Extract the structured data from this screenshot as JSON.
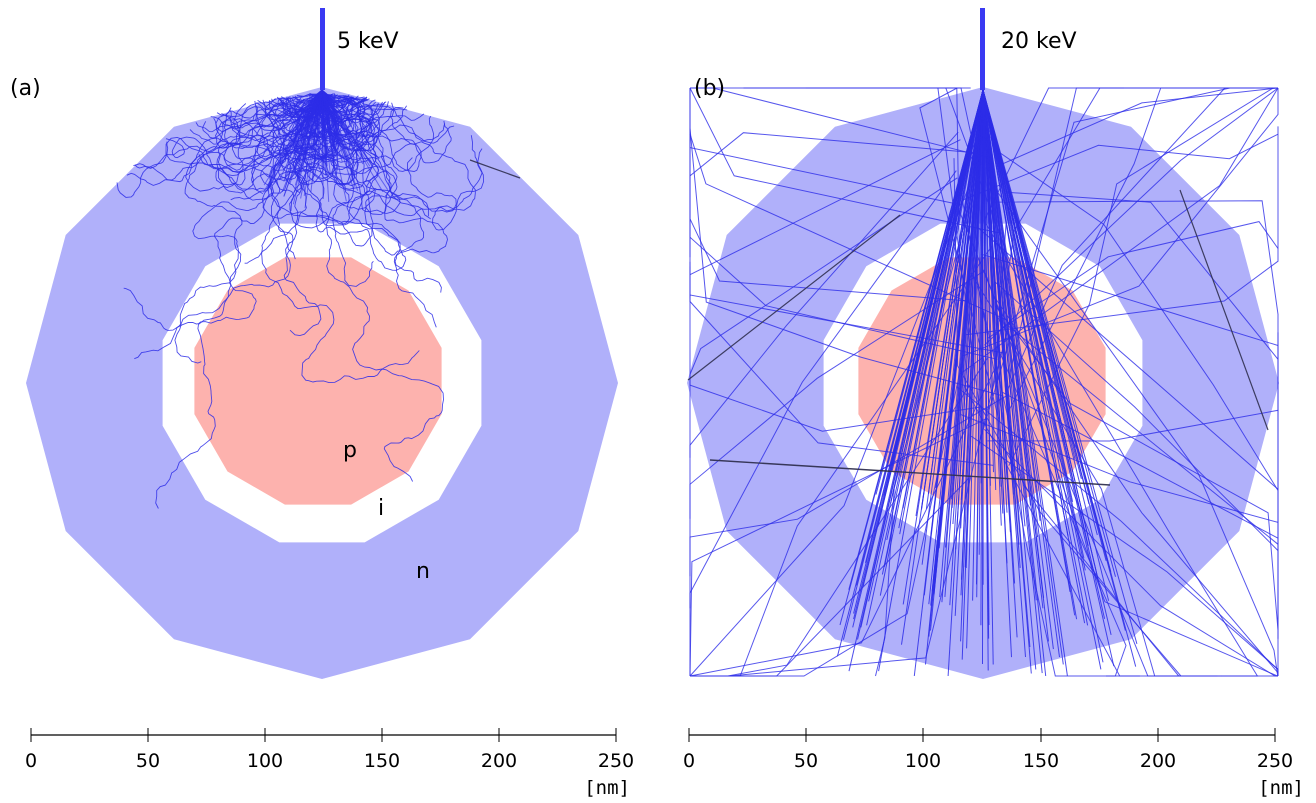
{
  "panels": [
    {
      "id": "a",
      "label": "(a)",
      "energy": "5 keV",
      "regions": {
        "p": "p",
        "i": "i",
        "n": "n"
      },
      "axis": {
        "ticks": [
          "0",
          "50",
          "100",
          "150",
          "200",
          "250"
        ],
        "unit": "[nm]"
      }
    },
    {
      "id": "b",
      "label": "(b)",
      "energy": "20 keV",
      "axis": {
        "ticks": [
          "0",
          "50",
          "100",
          "150",
          "200",
          "250"
        ],
        "unit": "[nm]"
      }
    }
  ],
  "colors": {
    "n_shell": "#b0b0fa",
    "i_shell": "#ffffff",
    "p_core": "#fdb2ae",
    "beam": "#3a3af2",
    "trajectory": "#2d2de8",
    "escaped": "#303050"
  },
  "sim": {
    "seed_a": 11,
    "seed_b": 29
  }
}
